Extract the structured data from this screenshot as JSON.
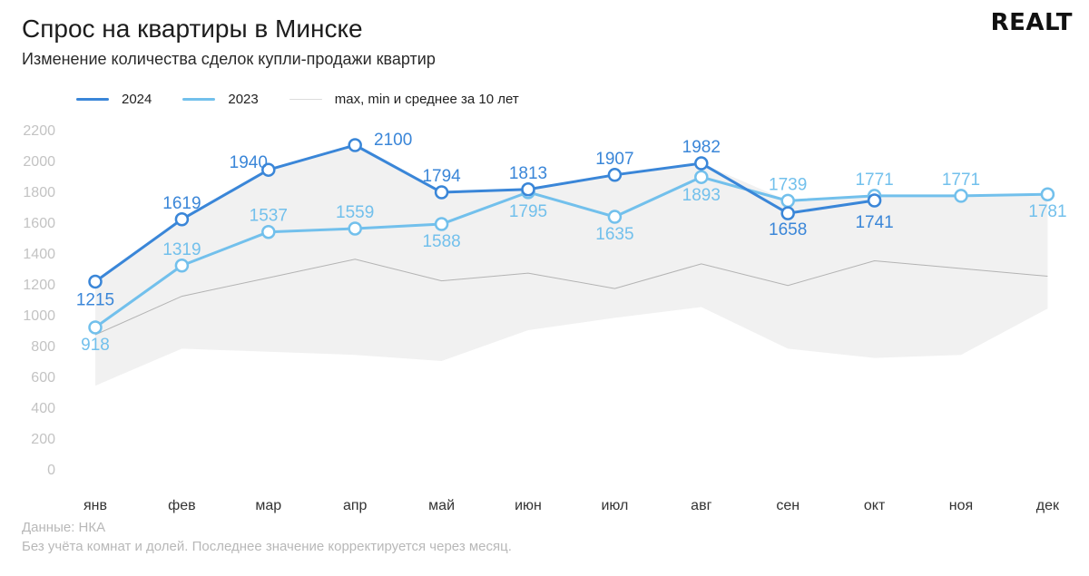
{
  "header": {
    "title": "Спрос на квартиры в Минске",
    "subtitle": "Изменение количества сделок купли-продажи квартир",
    "logo": "REALT"
  },
  "legend": {
    "items": [
      {
        "label": "2024",
        "color": "#3a86d8"
      },
      {
        "label": "2023",
        "color": "#72c0ec"
      },
      {
        "label": "max, min и среднее за 10 лет",
        "color": "#e0e0e0"
      }
    ]
  },
  "footer": {
    "source": "Данные: НКА",
    "note": "Без учёта комнат и долей. Последнее значение корректируется через месяц."
  },
  "chart_data": {
    "type": "line",
    "title": "Спрос на квартиры в Минске",
    "subtitle": "Изменение количества сделок купли-продажи квартир",
    "xlabel": "",
    "ylabel": "",
    "categories": [
      "янв",
      "фев",
      "мар",
      "апр",
      "май",
      "июн",
      "июл",
      "авг",
      "сен",
      "окт",
      "ноя",
      "дек"
    ],
    "ylim": [
      0,
      2200
    ],
    "yticks": [
      0,
      200,
      400,
      600,
      800,
      1000,
      1200,
      1400,
      1600,
      1800,
      2000,
      2200
    ],
    "grid": false,
    "legend_position": "top-left",
    "series": [
      {
        "name": "2024",
        "color": "#3a86d8",
        "values": [
          1215,
          1619,
          1940,
          2100,
          1794,
          1813,
          1907,
          1982,
          1658,
          1741,
          null,
          null
        ]
      },
      {
        "name": "2023",
        "color": "#72c0ec",
        "values": [
          918,
          1319,
          1537,
          1559,
          1588,
          1795,
          1635,
          1893,
          1739,
          1771,
          1771,
          1781
        ]
      }
    ],
    "band_10y": {
      "name": "max, min и среднее за 10 лет",
      "color": "#f1f1f1",
      "max": [
        1215,
        1619,
        1940,
        2100,
        1794,
        1813,
        1907,
        1982,
        1739,
        1771,
        1771,
        1781
      ],
      "min": [
        540,
        780,
        760,
        740,
        700,
        900,
        980,
        1050,
        780,
        720,
        740,
        1040
      ],
      "mean": [
        870,
        1120,
        1240,
        1360,
        1220,
        1270,
        1170,
        1330,
        1190,
        1350,
        1300,
        1250
      ]
    }
  }
}
